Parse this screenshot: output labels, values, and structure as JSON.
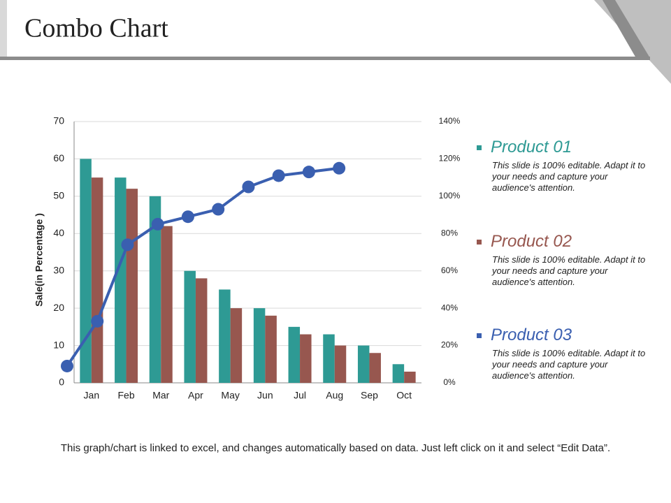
{
  "chart_data": {
    "type": "combo",
    "title": "Combo Chart",
    "y_label": "Sale(in Percentage )",
    "categories": [
      "Jan",
      "Feb",
      "Mar",
      "Apr",
      "May",
      "Jun",
      "Jul",
      "Aug",
      "Sep",
      "Oct"
    ],
    "series": [
      {
        "name": "Product 01",
        "type": "bar",
        "color": "#2e9a94",
        "values": [
          60,
          55,
          50,
          30,
          25,
          20,
          15,
          13,
          10,
          5
        ]
      },
      {
        "name": "Product 02",
        "type": "bar",
        "color": "#97574f",
        "values": [
          55,
          52,
          42,
          28,
          20,
          18,
          13,
          10,
          8,
          3
        ]
      },
      {
        "name": "Product 03",
        "type": "line",
        "axis": "y2",
        "color": "#3a5fb0",
        "values": [
          9,
          33,
          74,
          85,
          89,
          93,
          105,
          111,
          113,
          115
        ]
      }
    ],
    "legend_notes": [
      "This slide is 100% editable. Adapt it to your needs and capture your audience's attention.",
      "This slide is 100% editable. Adapt it to your needs and capture your audience's attention.",
      "This slide is 100% editable. Adapt it to your needs and capture your audience's attention."
    ],
    "ylim": [
      0,
      70
    ],
    "yticks": [
      0,
      10,
      20,
      30,
      40,
      50,
      60,
      70
    ],
    "y2lim": [
      0,
      140
    ],
    "y2ticks": [
      {
        "value": 0,
        "label": "0%"
      },
      {
        "value": 20,
        "label": "20%"
      },
      {
        "value": 40,
        "label": "40%"
      },
      {
        "value": 60,
        "label": "60%"
      },
      {
        "value": 80,
        "label": "80%"
      },
      {
        "value": 100,
        "label": "100%"
      },
      {
        "value": 120,
        "label": "120%"
      },
      {
        "value": 140,
        "label": "140%"
      }
    ],
    "grid": true,
    "legend": "right"
  },
  "footer": "This graph/chart is linked to excel, and changes automatically based on data. Just left click on it and select “Edit Data”."
}
